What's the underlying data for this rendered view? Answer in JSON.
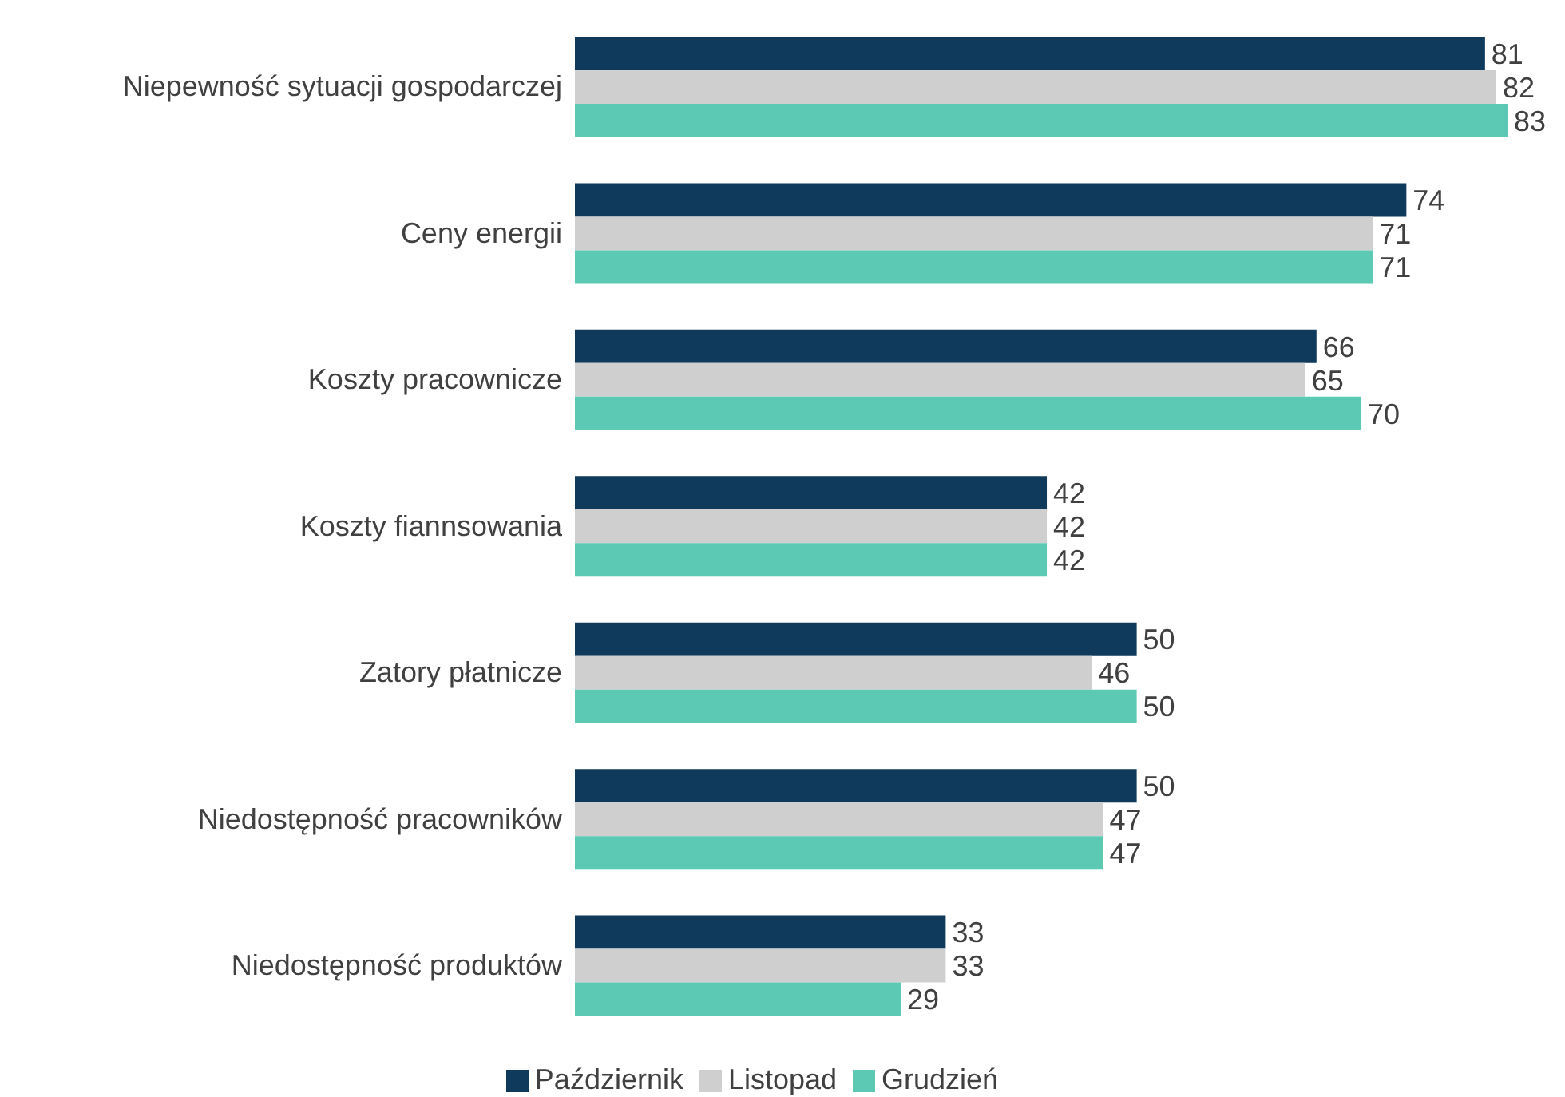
{
  "chart_data": {
    "type": "bar",
    "orientation": "horizontal",
    "categories": [
      "Niepewność sytuacji gospodarczej",
      "Ceny energii",
      "Koszty pracownicze",
      "Koszty fiannsowania",
      "Zatory płatnicze",
      "Niedostępność pracowników",
      "Niedostępność produktów"
    ],
    "series": [
      {
        "name": "Październik",
        "color": "#0f3a5c",
        "values": [
          81,
          74,
          66,
          42,
          50,
          50,
          33
        ]
      },
      {
        "name": "Listopad",
        "color": "#d0cfd0",
        "values": [
          82,
          71,
          65,
          42,
          46,
          47,
          33
        ]
      },
      {
        "name": "Grudzień",
        "color": "#5bc9b3",
        "values": [
          83,
          71,
          70,
          42,
          50,
          47,
          29
        ]
      }
    ],
    "data_labels": true,
    "legend": "bottom",
    "grid": false
  }
}
